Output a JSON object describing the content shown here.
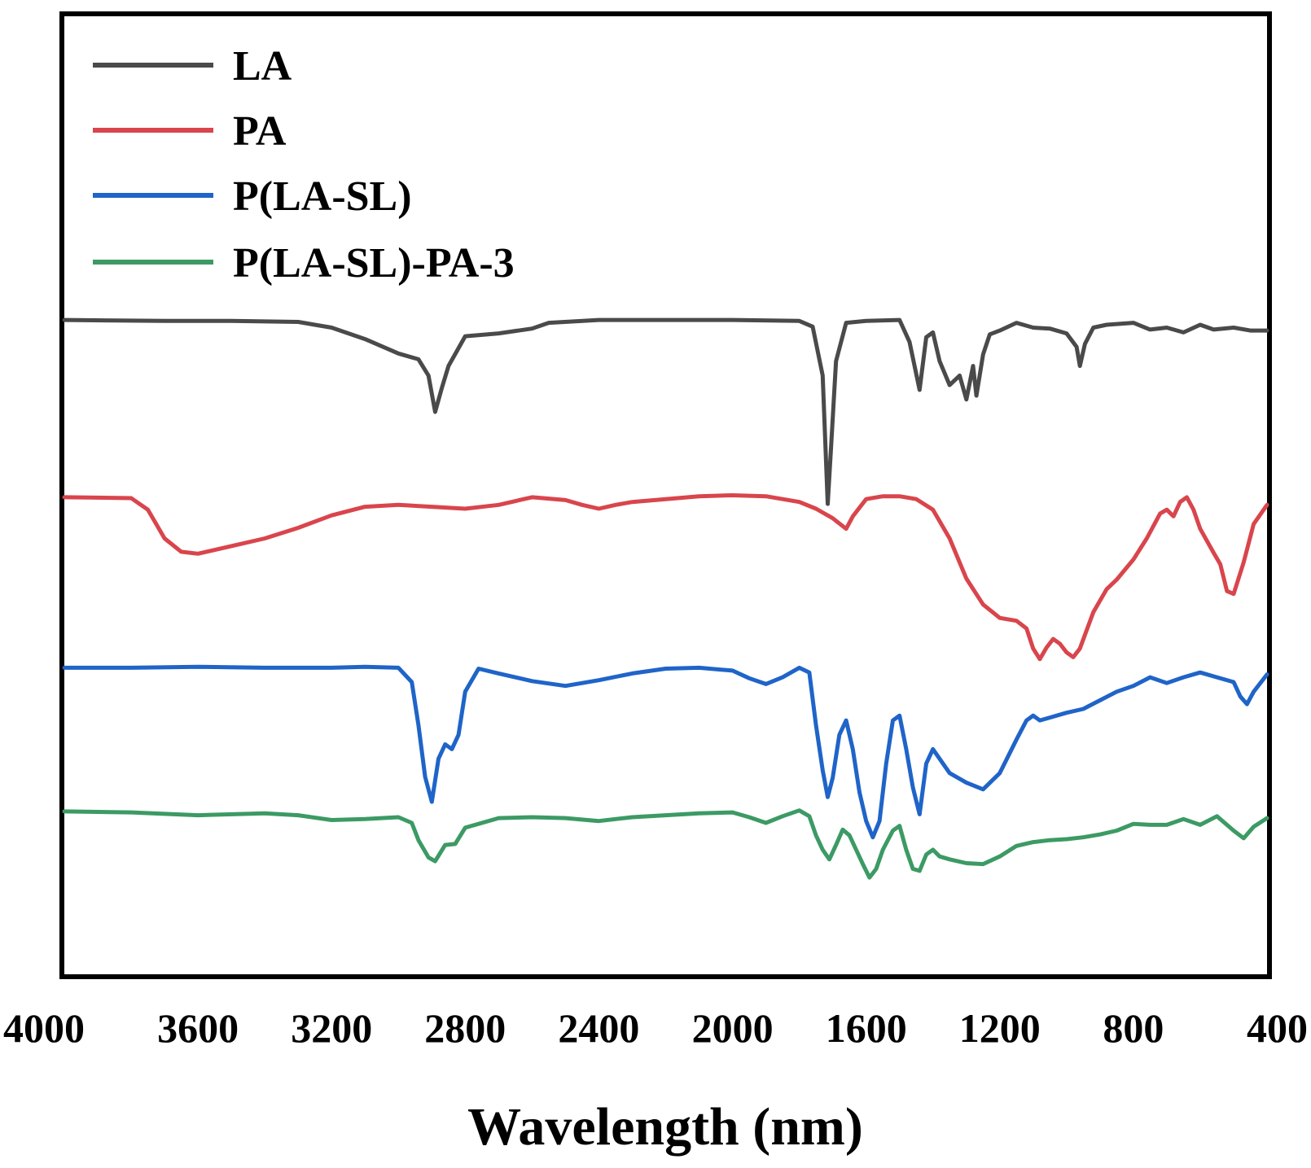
{
  "chart_data": {
    "type": "line",
    "title": "",
    "xlabel": "Wavelength (nm)",
    "ylabel": "",
    "xlim": [
      4000,
      400
    ],
    "ylim": [
      0,
      100
    ],
    "x_ticks": [
      4000,
      3600,
      3200,
      2800,
      2400,
      2000,
      1600,
      1200,
      800,
      400
    ],
    "x_tick_labels": [
      "4000",
      "3600",
      "3200",
      "2800",
      "2400",
      "2000",
      "1600",
      "1200",
      "800",
      "400"
    ],
    "grid": false,
    "legend_position": "top-left",
    "series": [
      {
        "name": "LA",
        "color": "#4a4a4a",
        "points": [
          [
            4000,
            68.3
          ],
          [
            3700,
            68.2
          ],
          [
            3500,
            68.2
          ],
          [
            3300,
            68.1
          ],
          [
            3200,
            67.5
          ],
          [
            3100,
            66.3
          ],
          [
            3000,
            64.8
          ],
          [
            2940,
            64.2
          ],
          [
            2910,
            62.5
          ],
          [
            2890,
            58.7
          ],
          [
            2870,
            61.2
          ],
          [
            2850,
            63.5
          ],
          [
            2800,
            66.6
          ],
          [
            2700,
            66.9
          ],
          [
            2600,
            67.4
          ],
          [
            2550,
            68.0
          ],
          [
            2400,
            68.3
          ],
          [
            2200,
            68.3
          ],
          [
            2000,
            68.3
          ],
          [
            1800,
            68.2
          ],
          [
            1760,
            67.6
          ],
          [
            1730,
            62.5
          ],
          [
            1715,
            49.1
          ],
          [
            1705,
            55.0
          ],
          [
            1690,
            64.0
          ],
          [
            1660,
            68.0
          ],
          [
            1600,
            68.2
          ],
          [
            1500,
            68.3
          ],
          [
            1470,
            66.0
          ],
          [
            1440,
            61.0
          ],
          [
            1420,
            66.5
          ],
          [
            1400,
            67.0
          ],
          [
            1380,
            64.0
          ],
          [
            1350,
            61.5
          ],
          [
            1320,
            62.5
          ],
          [
            1300,
            60.0
          ],
          [
            1280,
            63.5
          ],
          [
            1270,
            60.4
          ],
          [
            1250,
            64.7
          ],
          [
            1230,
            66.8
          ],
          [
            1200,
            67.2
          ],
          [
            1150,
            68.0
          ],
          [
            1100,
            67.5
          ],
          [
            1050,
            67.4
          ],
          [
            1000,
            66.9
          ],
          [
            970,
            65.5
          ],
          [
            960,
            63.5
          ],
          [
            945,
            65.8
          ],
          [
            920,
            67.5
          ],
          [
            880,
            67.8
          ],
          [
            800,
            68.0
          ],
          [
            750,
            67.3
          ],
          [
            700,
            67.5
          ],
          [
            650,
            67.0
          ],
          [
            600,
            67.8
          ],
          [
            560,
            67.3
          ],
          [
            500,
            67.5
          ],
          [
            450,
            67.2
          ],
          [
            400,
            67.2
          ]
        ]
      },
      {
        "name": "PA",
        "color": "#d9454c",
        "points": [
          [
            4000,
            49.8
          ],
          [
            3800,
            49.7
          ],
          [
            3750,
            48.5
          ],
          [
            3700,
            45.5
          ],
          [
            3650,
            44.1
          ],
          [
            3600,
            43.9
          ],
          [
            3500,
            44.7
          ],
          [
            3400,
            45.5
          ],
          [
            3300,
            46.6
          ],
          [
            3200,
            47.9
          ],
          [
            3100,
            48.8
          ],
          [
            3000,
            49.0
          ],
          [
            2900,
            48.8
          ],
          [
            2800,
            48.6
          ],
          [
            2700,
            49.0
          ],
          [
            2600,
            49.8
          ],
          [
            2500,
            49.5
          ],
          [
            2450,
            49.0
          ],
          [
            2400,
            48.6
          ],
          [
            2350,
            49.0
          ],
          [
            2300,
            49.3
          ],
          [
            2200,
            49.6
          ],
          [
            2100,
            49.9
          ],
          [
            2000,
            50.0
          ],
          [
            1900,
            49.9
          ],
          [
            1800,
            49.3
          ],
          [
            1750,
            48.6
          ],
          [
            1700,
            47.6
          ],
          [
            1660,
            46.5
          ],
          [
            1640,
            47.8
          ],
          [
            1600,
            49.6
          ],
          [
            1550,
            49.9
          ],
          [
            1500,
            49.9
          ],
          [
            1450,
            49.6
          ],
          [
            1400,
            48.5
          ],
          [
            1350,
            45.5
          ],
          [
            1300,
            41.3
          ],
          [
            1250,
            38.6
          ],
          [
            1200,
            37.2
          ],
          [
            1150,
            36.9
          ],
          [
            1120,
            36.1
          ],
          [
            1100,
            34.0
          ],
          [
            1080,
            32.9
          ],
          [
            1060,
            34.1
          ],
          [
            1040,
            35.0
          ],
          [
            1020,
            34.5
          ],
          [
            1000,
            33.6
          ],
          [
            980,
            33.1
          ],
          [
            960,
            34.0
          ],
          [
            920,
            37.8
          ],
          [
            880,
            40.2
          ],
          [
            850,
            41.2
          ],
          [
            800,
            43.3
          ],
          [
            760,
            45.5
          ],
          [
            720,
            48.1
          ],
          [
            700,
            48.5
          ],
          [
            680,
            47.8
          ],
          [
            660,
            49.3
          ],
          [
            640,
            49.8
          ],
          [
            620,
            48.5
          ],
          [
            600,
            46.5
          ],
          [
            560,
            44.0
          ],
          [
            540,
            42.8
          ],
          [
            520,
            40.0
          ],
          [
            500,
            39.7
          ],
          [
            470,
            43.0
          ],
          [
            440,
            47.0
          ],
          [
            400,
            49.0
          ]
        ]
      },
      {
        "name": "P(LA-SL)",
        "color": "#1f64c8",
        "points": [
          [
            4000,
            32.0
          ],
          [
            3800,
            32.0
          ],
          [
            3600,
            32.1
          ],
          [
            3400,
            32.0
          ],
          [
            3200,
            32.0
          ],
          [
            3100,
            32.1
          ],
          [
            3000,
            32.0
          ],
          [
            2960,
            30.5
          ],
          [
            2940,
            26.0
          ],
          [
            2920,
            20.6
          ],
          [
            2900,
            18.0
          ],
          [
            2880,
            22.5
          ],
          [
            2860,
            24.0
          ],
          [
            2840,
            23.5
          ],
          [
            2820,
            25.0
          ],
          [
            2800,
            29.5
          ],
          [
            2760,
            31.9
          ],
          [
            2700,
            31.4
          ],
          [
            2600,
            30.6
          ],
          [
            2500,
            30.1
          ],
          [
            2400,
            30.7
          ],
          [
            2300,
            31.4
          ],
          [
            2200,
            31.9
          ],
          [
            2100,
            32.0
          ],
          [
            2000,
            31.7
          ],
          [
            1950,
            30.9
          ],
          [
            1900,
            30.3
          ],
          [
            1850,
            31.0
          ],
          [
            1800,
            32.0
          ],
          [
            1770,
            31.5
          ],
          [
            1750,
            26.0
          ],
          [
            1730,
            21.3
          ],
          [
            1715,
            18.5
          ],
          [
            1700,
            20.5
          ],
          [
            1680,
            25.0
          ],
          [
            1660,
            26.5
          ],
          [
            1640,
            23.5
          ],
          [
            1620,
            19.0
          ],
          [
            1600,
            16.0
          ],
          [
            1580,
            14.3
          ],
          [
            1560,
            16.0
          ],
          [
            1540,
            22.0
          ],
          [
            1520,
            26.5
          ],
          [
            1500,
            27.0
          ],
          [
            1480,
            23.5
          ],
          [
            1460,
            19.5
          ],
          [
            1440,
            16.7
          ],
          [
            1420,
            22.0
          ],
          [
            1400,
            23.5
          ],
          [
            1380,
            22.5
          ],
          [
            1350,
            21.0
          ],
          [
            1300,
            20.0
          ],
          [
            1250,
            19.3
          ],
          [
            1200,
            21.0
          ],
          [
            1150,
            24.5
          ],
          [
            1120,
            26.5
          ],
          [
            1100,
            27.0
          ],
          [
            1080,
            26.5
          ],
          [
            1050,
            26.8
          ],
          [
            1000,
            27.3
          ],
          [
            950,
            27.7
          ],
          [
            900,
            28.6
          ],
          [
            850,
            29.5
          ],
          [
            800,
            30.1
          ],
          [
            750,
            31.0
          ],
          [
            700,
            30.4
          ],
          [
            650,
            31.0
          ],
          [
            600,
            31.5
          ],
          [
            550,
            31.0
          ],
          [
            500,
            30.5
          ],
          [
            480,
            29.0
          ],
          [
            460,
            28.2
          ],
          [
            440,
            29.5
          ],
          [
            400,
            31.3
          ]
        ]
      },
      {
        "name": "P(LA-SL)-PA-3",
        "color": "#3c9a64",
        "points": [
          [
            4000,
            17.0
          ],
          [
            3800,
            16.9
          ],
          [
            3600,
            16.6
          ],
          [
            3400,
            16.8
          ],
          [
            3300,
            16.6
          ],
          [
            3200,
            16.1
          ],
          [
            3100,
            16.2
          ],
          [
            3000,
            16.4
          ],
          [
            2960,
            15.8
          ],
          [
            2940,
            14.0
          ],
          [
            2910,
            12.2
          ],
          [
            2890,
            11.8
          ],
          [
            2860,
            13.5
          ],
          [
            2830,
            13.6
          ],
          [
            2800,
            15.3
          ],
          [
            2700,
            16.3
          ],
          [
            2600,
            16.4
          ],
          [
            2500,
            16.3
          ],
          [
            2400,
            16.0
          ],
          [
            2300,
            16.4
          ],
          [
            2200,
            16.6
          ],
          [
            2100,
            16.8
          ],
          [
            2000,
            16.9
          ],
          [
            1950,
            16.4
          ],
          [
            1900,
            15.8
          ],
          [
            1850,
            16.5
          ],
          [
            1800,
            17.1
          ],
          [
            1770,
            16.5
          ],
          [
            1750,
            14.5
          ],
          [
            1730,
            13.0
          ],
          [
            1710,
            12.0
          ],
          [
            1690,
            13.5
          ],
          [
            1670,
            15.1
          ],
          [
            1650,
            14.5
          ],
          [
            1630,
            13.0
          ],
          [
            1610,
            11.5
          ],
          [
            1590,
            10.1
          ],
          [
            1570,
            11.0
          ],
          [
            1550,
            13.0
          ],
          [
            1520,
            15.0
          ],
          [
            1500,
            15.5
          ],
          [
            1480,
            13.0
          ],
          [
            1460,
            11.0
          ],
          [
            1440,
            10.8
          ],
          [
            1420,
            12.5
          ],
          [
            1400,
            13.0
          ],
          [
            1380,
            12.3
          ],
          [
            1350,
            12.0
          ],
          [
            1300,
            11.6
          ],
          [
            1250,
            11.5
          ],
          [
            1200,
            12.3
          ],
          [
            1150,
            13.4
          ],
          [
            1100,
            13.8
          ],
          [
            1050,
            14.0
          ],
          [
            1000,
            14.1
          ],
          [
            950,
            14.3
          ],
          [
            900,
            14.6
          ],
          [
            850,
            15.0
          ],
          [
            800,
            15.7
          ],
          [
            750,
            15.6
          ],
          [
            700,
            15.6
          ],
          [
            650,
            16.2
          ],
          [
            600,
            15.6
          ],
          [
            550,
            16.5
          ],
          [
            500,
            15.0
          ],
          [
            470,
            14.2
          ],
          [
            440,
            15.4
          ],
          [
            400,
            16.3
          ]
        ]
      }
    ]
  }
}
